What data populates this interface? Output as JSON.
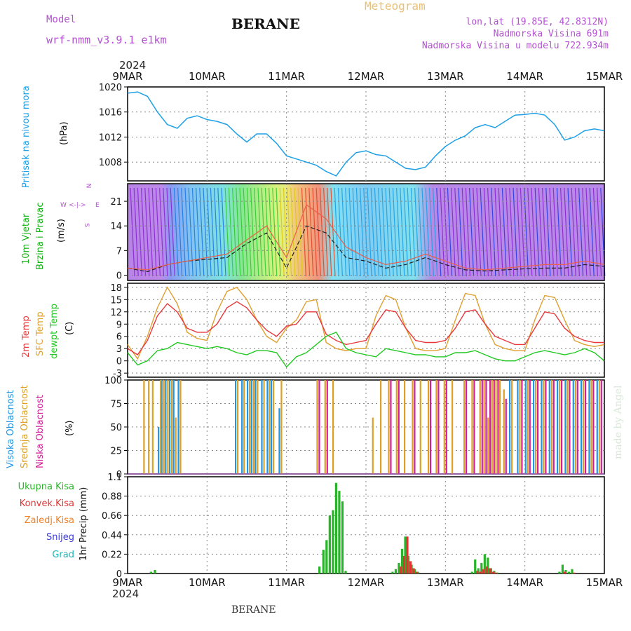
{
  "header": {
    "model_label": "Model",
    "model_name": "wrf-nmm_v3.9.1 e1km",
    "station": "BERANE",
    "app_title": "Meteogram",
    "coords": "lon,lat (19.85E, 42.8312N)",
    "elevation": "Nadmorska Visina 691m",
    "elevation_model": "Nadmorska Visina u modelu 722.934m",
    "year": "2024",
    "footer_station": "BERANE",
    "credit": "made by Angel"
  },
  "colors": {
    "pressure": "#1ea0e6",
    "t2m": "#e8383c",
    "sfc": "#e0a030",
    "dew": "#22c822",
    "high_cloud": "#1e96e6",
    "mid_cloud": "#dca028",
    "low_cloud": "#d21e96",
    "total_precip": "#28b428",
    "conv_precip": "#e63232",
    "frz_precip": "#f08228",
    "snow": "#3c3cdc",
    "hail": "#1eb4b4",
    "wind_label": "#14b414",
    "compass": "#b450d2"
  },
  "x_axis": {
    "labels": [
      "9MAR",
      "10MAR",
      "11MAR",
      "12MAR",
      "13MAR",
      "14MAR",
      "15MAR"
    ]
  },
  "panels": {
    "pressure": {
      "label": "Pritisak na nivou mora",
      "unit": "(hPa)"
    },
    "wind": {
      "label1": "10m Vjetar",
      "label2": "Brzina i Pravac",
      "unit": "(m/s)",
      "compass_n": "N",
      "compass_w": "W",
      "compass_e": "E",
      "compass_s": "S",
      "compass_arrows": "<-|->"
    },
    "temp": {
      "label1": "2m Temp",
      "label2": "SFC Temp",
      "label3": "dewpt Temp",
      "unit": "(C)"
    },
    "cloud": {
      "label1": "Visoka Oblacnost",
      "label2": "Srednja Oblacnost",
      "label3": "Niska Oblacnost",
      "unit": "(%)"
    },
    "precip": {
      "legend": [
        "Ukupna Kisa",
        "Konvek.Kisa",
        "Zaledj.Kisa",
        "Snijeg",
        "Grad"
      ],
      "unit": "1hr Precip (mm)"
    }
  },
  "chart_data": [
    {
      "type": "line",
      "ylim": [
        1005,
        1020
      ],
      "yticks": [
        "1008",
        "1012",
        "1016",
        "1020"
      ],
      "x": [
        0,
        0.125,
        0.25,
        0.375,
        0.5,
        0.625,
        0.75,
        0.875,
        1,
        1.125,
        1.25,
        1.375,
        1.5,
        1.625,
        1.75,
        1.875,
        2,
        2.125,
        2.25,
        2.375,
        2.5,
        2.625,
        2.75,
        2.875,
        3,
        3.125,
        3.25,
        3.375,
        3.5,
        3.625,
        3.75,
        3.875,
        4,
        4.125,
        4.25,
        4.375,
        4.5,
        4.625,
        4.75,
        4.875,
        5,
        5.125,
        5.25,
        5.375,
        5.5,
        5.625,
        5.75,
        5.875,
        6
      ],
      "series": [
        {
          "values": [
            1019,
            1019.2,
            1018.5,
            1016,
            1014,
            1013.4,
            1015,
            1015.4,
            1014.8,
            1014.5,
            1014,
            1012.5,
            1011.2,
            1012.5,
            1012.5,
            1011,
            1009,
            1008.5,
            1008,
            1007.5,
            1006.5,
            1005.8,
            1008,
            1009.5,
            1009.8,
            1009.2,
            1009,
            1008,
            1007,
            1006.8,
            1007.2,
            1009,
            1010.5,
            1011.5,
            1012.2,
            1013.5,
            1014,
            1013.5,
            1014.5,
            1015.5,
            1015.6,
            1015.8,
            1015.5,
            1014,
            1011.5,
            1012,
            1013,
            1013.3,
            1013
          ]
        }
      ]
    },
    {
      "type": "line",
      "ylim": [
        -1.5,
        26
      ],
      "yticks": [
        "0",
        "7",
        "14",
        "21"
      ],
      "x": [
        0,
        0.25,
        0.5,
        0.75,
        1,
        1.25,
        1.5,
        1.75,
        2,
        2.25,
        2.5,
        2.75,
        3,
        3.25,
        3.5,
        3.75,
        4,
        4.25,
        4.5,
        4.75,
        5,
        5.25,
        5.5,
        5.75,
        6
      ],
      "series": [
        {
          "values": [
            2,
            1,
            3,
            4,
            4.5,
            5,
            9,
            12,
            2,
            14,
            12,
            5,
            4,
            2,
            3,
            5,
            3,
            1.5,
            1.2,
            1.5,
            1.8,
            2,
            2,
            3,
            2.5
          ]
        },
        {
          "values": [
            2,
            1.5,
            3,
            4,
            5,
            6,
            10,
            14,
            5,
            20,
            16,
            8,
            5,
            3,
            4,
            6,
            4,
            2,
            1.5,
            2,
            2.5,
            3,
            3,
            4,
            3
          ]
        }
      ]
    },
    {
      "type": "line",
      "ylim": [
        -4,
        19
      ],
      "yticks": [
        "-3",
        "0",
        "3",
        "6",
        "9",
        "12",
        "15",
        "18"
      ],
      "x": [
        0,
        0.125,
        0.25,
        0.375,
        0.5,
        0.625,
        0.75,
        0.875,
        1,
        1.125,
        1.25,
        1.375,
        1.5,
        1.625,
        1.75,
        1.875,
        2,
        2.125,
        2.25,
        2.375,
        2.5,
        2.625,
        2.75,
        2.875,
        3,
        3.125,
        3.25,
        3.375,
        3.5,
        3.625,
        3.75,
        3.875,
        4,
        4.125,
        4.25,
        4.375,
        4.5,
        4.625,
        4.75,
        4.875,
        5,
        5.125,
        5.25,
        5.375,
        5.5,
        5.625,
        5.75,
        5.875,
        6
      ],
      "series": [
        {
          "name": "2m Temp",
          "values": [
            3,
            1.5,
            5,
            11,
            14,
            12,
            8,
            7,
            7,
            9,
            13,
            14.5,
            13,
            10,
            7.5,
            6,
            8.5,
            9,
            12,
            12,
            6.5,
            5,
            4,
            4.5,
            5,
            9,
            12.5,
            12,
            8,
            5,
            4.5,
            4.5,
            5,
            8,
            12,
            12.5,
            9,
            6,
            5,
            4,
            4,
            8,
            12,
            11.5,
            8,
            6,
            5,
            4.5,
            4.5
          ]
        },
        {
          "name": "SFC Temp",
          "values": [
            4,
            0.5,
            6,
            13,
            18,
            14,
            7,
            5.5,
            5,
            12,
            17,
            18,
            15,
            10,
            6,
            4.5,
            8,
            10,
            14.5,
            15,
            4.5,
            3,
            2.5,
            3,
            3,
            11,
            16,
            15,
            8,
            3,
            2.5,
            2.5,
            3,
            10,
            16.5,
            16,
            9,
            4,
            3,
            2.5,
            2.5,
            10,
            16,
            15.5,
            10,
            5,
            4,
            3.5,
            4
          ]
        },
        {
          "name": "dewpt Temp",
          "values": [
            2,
            -1,
            0,
            2.5,
            3,
            4.5,
            4,
            3.5,
            3,
            3.5,
            3,
            2,
            1.5,
            2.5,
            2.5,
            2,
            -1.5,
            1,
            2,
            4,
            6,
            7,
            3,
            2,
            1.5,
            1,
            3,
            2.5,
            2,
            1.5,
            1.5,
            1,
            1,
            2,
            2,
            2.5,
            1.5,
            0.5,
            0,
            0,
            1,
            2,
            2.5,
            2,
            1.5,
            2,
            3,
            2,
            0
          ]
        }
      ]
    },
    {
      "type": "bar",
      "ylim": [
        0,
        100
      ],
      "yticks": [
        "0",
        "25",
        "50",
        "75",
        "100"
      ],
      "x": [
        0.17,
        0.23,
        0.28,
        0.38,
        0.42,
        0.47,
        0.52,
        0.57,
        0.63,
        1.35,
        1.43,
        1.5,
        1.55,
        1.6,
        1.68,
        1.75,
        1.8,
        1.9,
        2.35,
        2.45,
        2.55,
        3.05,
        3.15,
        3.25,
        3.35,
        3.45,
        3.55,
        3.65,
        3.75,
        3.85,
        3.95,
        4.05,
        4.2,
        4.3,
        4.4,
        4.45,
        4.5,
        4.55,
        4.6,
        4.65,
        4.7,
        4.8,
        4.9,
        5.0,
        5.1,
        5.2,
        5.3,
        5.4,
        5.5,
        5.6,
        5.7,
        5.8,
        5.9
      ],
      "series": [
        {
          "name": "Visoka Oblacnost",
          "values": [
            0,
            0,
            0,
            50,
            100,
            100,
            100,
            100,
            100,
            100,
            100,
            100,
            100,
            100,
            100,
            100,
            100,
            70,
            0,
            0,
            0,
            0,
            0,
            0,
            0,
            0,
            0,
            0,
            0,
            0,
            0,
            0,
            0,
            0,
            0,
            0,
            0,
            0,
            0,
            0,
            0,
            100,
            100,
            100,
            100,
            100,
            100,
            100,
            100,
            100,
            100,
            100,
            100
          ]
        },
        {
          "name": "Srednja Oblacnost",
          "values": [
            100,
            100,
            100,
            100,
            100,
            100,
            100,
            60,
            100,
            100,
            100,
            100,
            100,
            100,
            100,
            100,
            100,
            100,
            100,
            100,
            100,
            60,
            100,
            100,
            100,
            100,
            100,
            100,
            100,
            100,
            100,
            100,
            100,
            100,
            100,
            100,
            60,
            100,
            100,
            100,
            90,
            100,
            100,
            100,
            100,
            100,
            100,
            100,
            100,
            100,
            100,
            100,
            100
          ]
        },
        {
          "name": "Niska Oblacnost",
          "values": [
            0,
            0,
            0,
            0,
            0,
            0,
            0,
            0,
            0,
            0,
            0,
            0,
            0,
            0,
            0,
            0,
            0,
            0,
            100,
            100,
            0,
            0,
            0,
            100,
            100,
            0,
            100,
            0,
            100,
            100,
            100,
            0,
            100,
            100,
            100,
            100,
            100,
            100,
            100,
            0,
            80,
            0,
            100,
            100,
            100,
            100,
            100,
            100,
            100,
            100,
            100,
            100,
            100
          ]
        }
      ]
    },
    {
      "type": "bar",
      "ylim": [
        0,
        1.1
      ],
      "yticks": [
        "0",
        "0.22",
        "0.44",
        "0.66",
        "0.88",
        "1.1"
      ],
      "x": [
        0.28,
        0.33,
        2.4,
        2.45,
        2.49,
        2.53,
        2.57,
        2.61,
        2.65,
        2.69,
        2.73,
        3.32,
        3.36,
        3.4,
        3.44,
        3.48,
        3.52,
        3.56,
        3.6,
        3.64,
        4.32,
        4.36,
        4.4,
        4.44,
        4.48,
        4.52,
        4.56,
        4.6,
        4.64,
        5.42,
        5.46,
        5.5,
        5.54,
        5.58
      ],
      "series": [
        {
          "name": "Ukupna Kisa",
          "values": [
            0.02,
            0.04,
            0.08,
            0.27,
            0.38,
            0.66,
            0.72,
            1.03,
            0.94,
            0.82,
            0.03,
            0.02,
            0.05,
            0.12,
            0.28,
            0.42,
            0.2,
            0.1,
            0.05,
            0.02,
            0.02,
            0.16,
            0.06,
            0.12,
            0.22,
            0.18,
            0.06,
            0.03,
            0.01,
            0.02,
            0.1,
            0.04,
            0.02,
            0.05
          ]
        },
        {
          "name": "Konvek.Kisa",
          "values": [
            0,
            0,
            0,
            0,
            0,
            0,
            0,
            0,
            0,
            0,
            0,
            0,
            0,
            0.08,
            0.2,
            0.42,
            0.14,
            0.06,
            0.02,
            0,
            0,
            0.03,
            0.02,
            0.05,
            0.08,
            0.06,
            0.02,
            0.01,
            0,
            0,
            0.02,
            0,
            0,
            0.01
          ]
        }
      ]
    }
  ]
}
